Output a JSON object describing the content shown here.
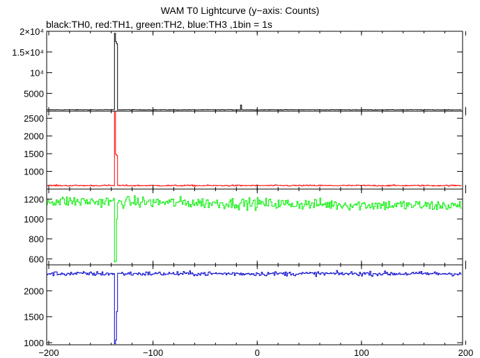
{
  "title": "WAM T0 Lightcurve (y−axis: Counts)",
  "subtitle": "black:TH0, red:TH1, green:TH2, blue:TH3 ,1bin = 1s",
  "chart_data": {
    "type": "line",
    "title": "WAM T0 Lightcurve (y−axis: Counts)",
    "subtitle": "black:TH0, red:TH1, green:TH2, blue:TH3 ,1bin = 1s",
    "xlabel": "",
    "ylabel": "",
    "xlim": [
      -202,
      197
    ],
    "x_ticks": [
      -200,
      -100,
      0,
      100,
      200
    ],
    "x_tick_labels": [
      "−200",
      "−100",
      "0",
      "100",
      "200"
    ],
    "bin": "1s",
    "grid": false,
    "legend": "none",
    "panels": [
      {
        "name": "TH0",
        "color": "#000000",
        "ylim": [
          700,
          20000
        ],
        "y_ticks": [
          5000,
          10000,
          15000,
          20000
        ],
        "y_tick_labels": [
          "5000",
          "10⁴",
          "1.5×10⁴",
          "2×10⁴"
        ],
        "baseline": 1050,
        "noise": 40,
        "spike": [
          [
            -137,
            19500
          ],
          [
            -136,
            17500
          ],
          [
            -135,
            17000
          ]
        ],
        "extra_spikes": [
          [
            -16,
            2200
          ]
        ]
      },
      {
        "name": "TH1",
        "color": "#ff0000",
        "ylim": [
          500,
          2700
        ],
        "y_ticks": [
          1000,
          1500,
          2000,
          2500
        ],
        "y_tick_labels": [
          "1000",
          "1500",
          "2000",
          "2500"
        ],
        "baseline": 600,
        "noise": 12,
        "spike": [
          [
            -137,
            2700
          ],
          [
            -136,
            1480
          ],
          [
            -135,
            1450
          ]
        ],
        "extra_spikes": []
      },
      {
        "name": "TH2",
        "color": "#00ee00",
        "ylim": [
          540,
          1300
        ],
        "y_ticks": [
          600,
          800,
          1000,
          1200
        ],
        "y_tick_labels": [
          "600",
          "800",
          "1000",
          "1200"
        ],
        "baseline": 1180,
        "noise": 40,
        "drift": -50,
        "spike": [
          [
            -137,
            570
          ],
          [
            -136,
            580
          ],
          [
            -135,
            1000
          ]
        ],
        "extra_spikes": []
      },
      {
        "name": "TH3",
        "color": "#0000cc",
        "ylim": [
          960,
          2500
        ],
        "y_ticks": [
          1000,
          1500,
          2000
        ],
        "y_tick_labels": [
          "1000",
          "1500",
          "2000"
        ],
        "baseline": 2330,
        "noise": 30,
        "spike": [
          [
            -137,
            980
          ],
          [
            -136,
            1050
          ],
          [
            -135,
            1600
          ]
        ],
        "extra_spikes": []
      }
    ]
  }
}
